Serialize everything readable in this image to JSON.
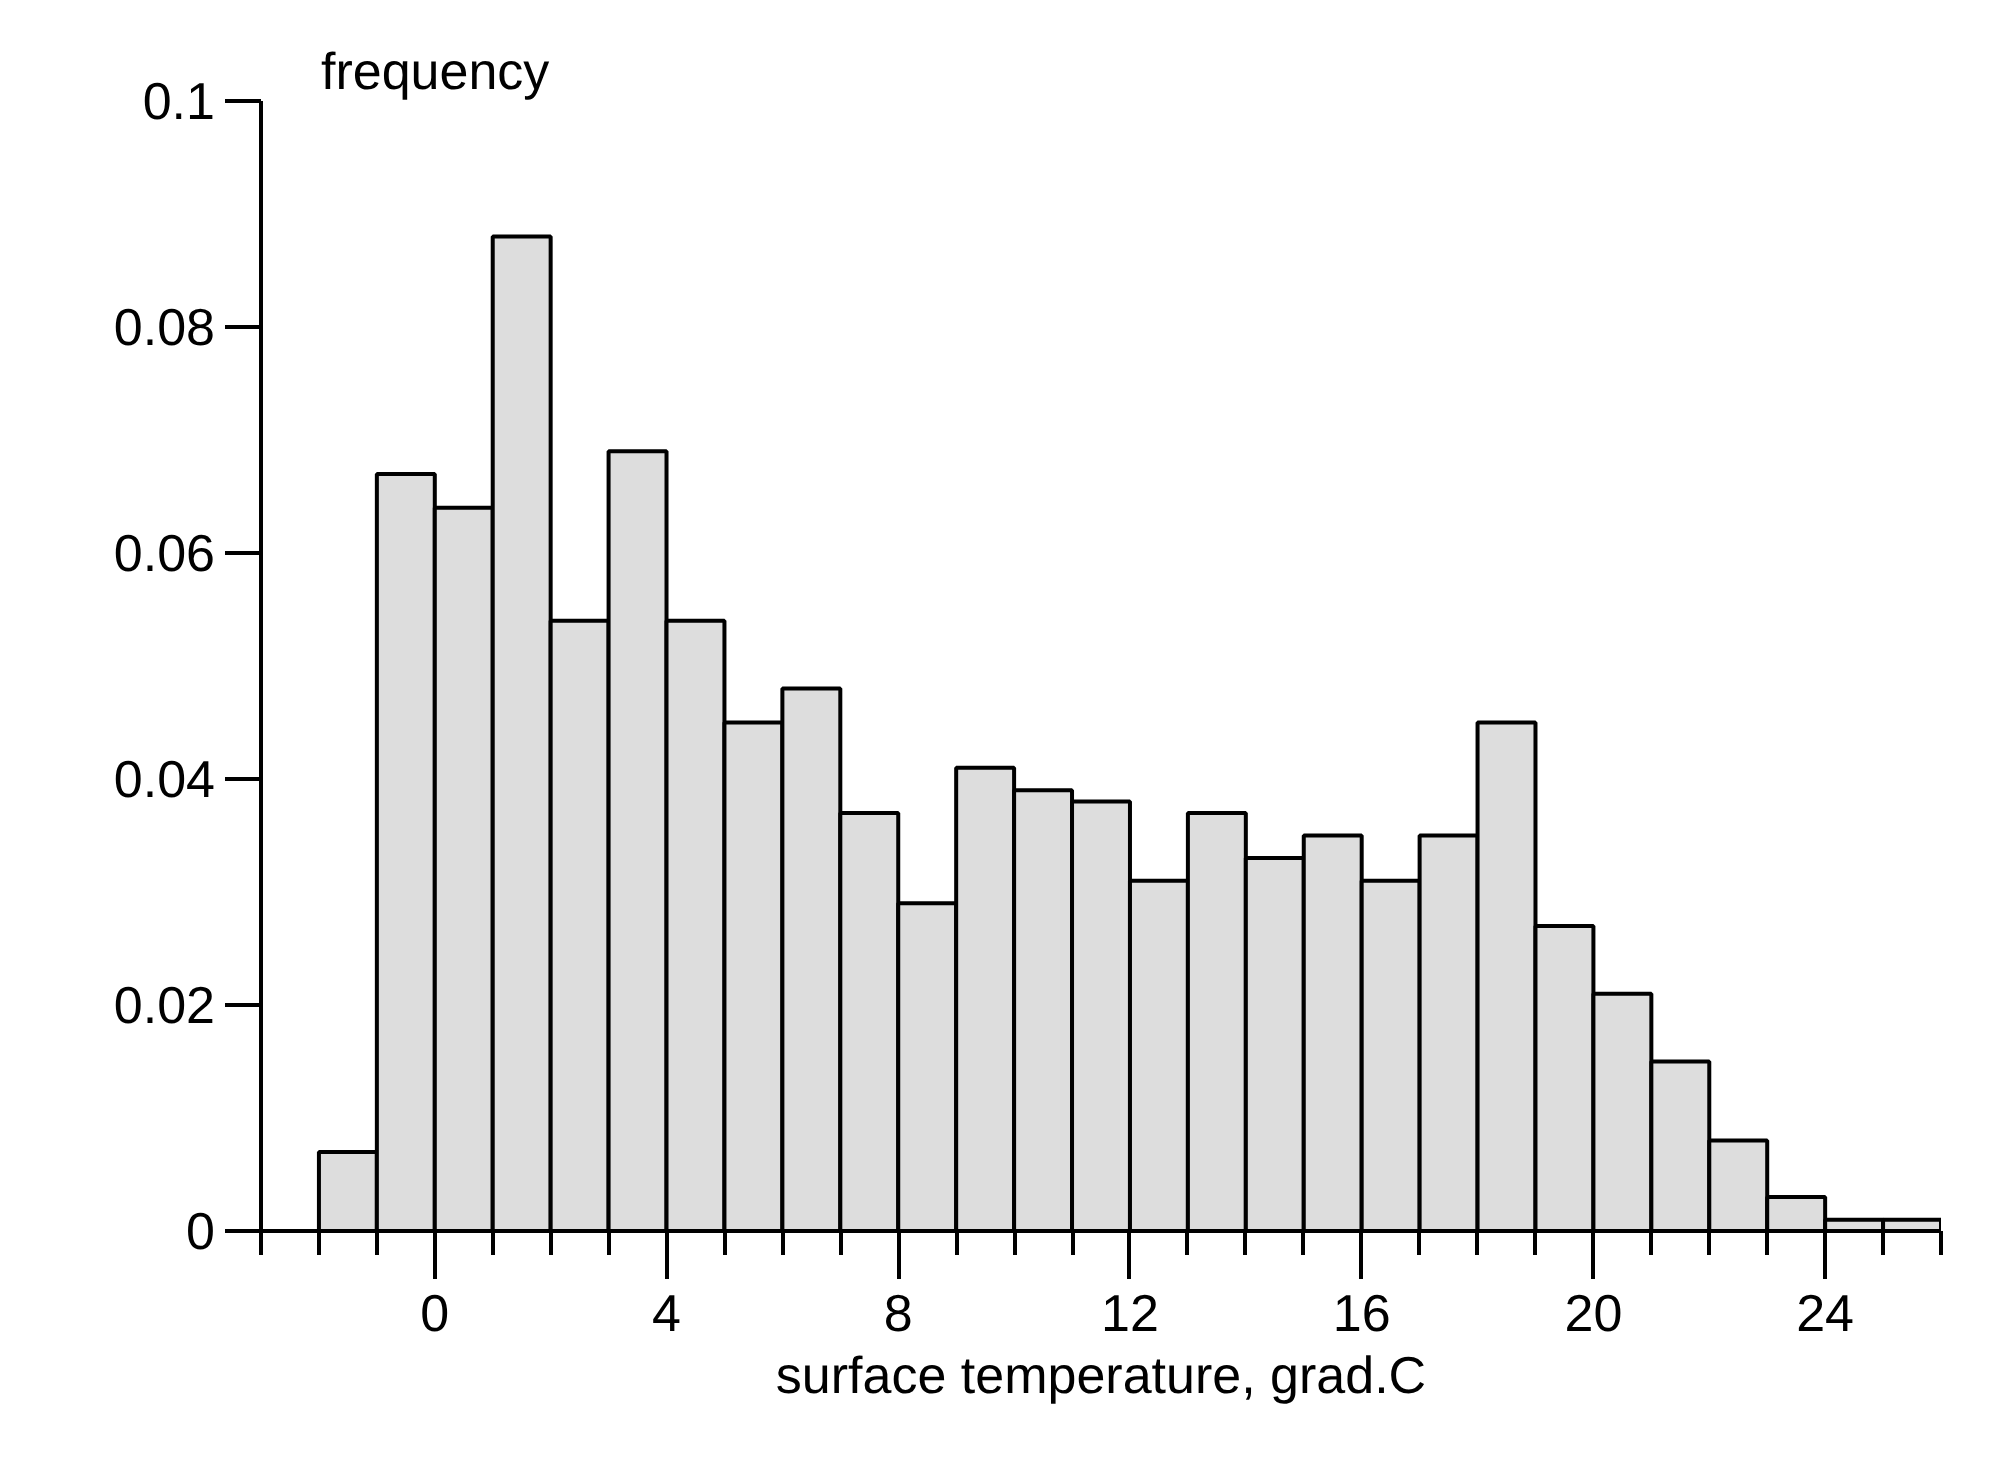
{
  "chart_data": {
    "type": "histogram",
    "xlabel": "surface temperature, grad.C",
    "ylabel": "frequency",
    "bins": [
      -2,
      -1,
      0,
      1,
      2,
      3,
      4,
      5,
      6,
      7,
      8,
      9,
      10,
      11,
      12,
      13,
      14,
      15,
      16,
      17,
      18,
      19,
      20,
      21,
      22,
      23,
      24,
      25,
      26
    ],
    "values": [
      0.007,
      0.067,
      0.064,
      0.088,
      0.054,
      0.069,
      0.054,
      0.045,
      0.048,
      0.037,
      0.029,
      0.041,
      0.039,
      0.038,
      0.031,
      0.037,
      0.033,
      0.035,
      0.031,
      0.035,
      0.045,
      0.027,
      0.021,
      0.015,
      0.008,
      0.003,
      0.001,
      0.001
    ],
    "color": "#dddddd",
    "xlim": [
      -3,
      26
    ],
    "ylim": [
      0,
      0.1
    ],
    "xticks": [
      {
        "value": -3,
        "label": null
      },
      {
        "value": -2,
        "label": null
      },
      {
        "value": -1,
        "label": null
      },
      0,
      {
        "value": 1,
        "label": null
      },
      {
        "value": 2,
        "label": null
      },
      {
        "value": 3,
        "label": null
      },
      4,
      {
        "value": 5,
        "label": null
      },
      {
        "value": 6,
        "label": null
      },
      {
        "value": 7,
        "label": null
      },
      8,
      {
        "value": 9,
        "label": null
      },
      {
        "value": 10,
        "label": null
      },
      {
        "value": 11,
        "label": null
      },
      12,
      {
        "value": 13,
        "label": null
      },
      {
        "value": 14,
        "label": null
      },
      {
        "value": 15,
        "label": null
      },
      16,
      {
        "value": 17,
        "label": null
      },
      {
        "value": 18,
        "label": null
      },
      {
        "value": 19,
        "label": null
      },
      20,
      {
        "value": 21,
        "label": null
      },
      {
        "value": 22,
        "label": null
      },
      {
        "value": 23,
        "label": null
      },
      24,
      {
        "value": 25,
        "label": null
      },
      {
        "value": 26,
        "label": null
      }
    ],
    "yticks": [
      0,
      0.02,
      0.04,
      0.06,
      0.08,
      0.1
    ],
    "grid": false
  }
}
